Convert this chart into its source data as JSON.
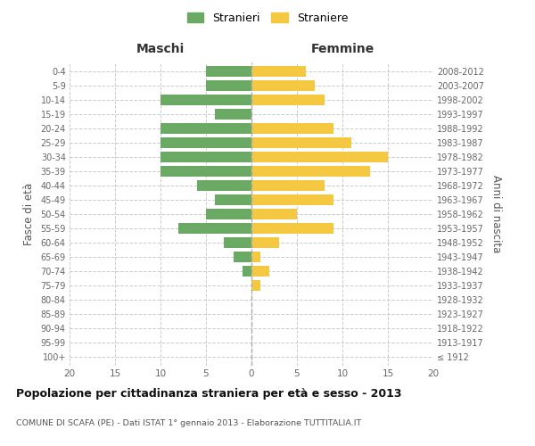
{
  "age_groups": [
    "100+",
    "95-99",
    "90-94",
    "85-89",
    "80-84",
    "75-79",
    "70-74",
    "65-69",
    "60-64",
    "55-59",
    "50-54",
    "45-49",
    "40-44",
    "35-39",
    "30-34",
    "25-29",
    "20-24",
    "15-19",
    "10-14",
    "5-9",
    "0-4"
  ],
  "birth_years": [
    "≤ 1912",
    "1913-1917",
    "1918-1922",
    "1923-1927",
    "1928-1932",
    "1933-1937",
    "1938-1942",
    "1943-1947",
    "1948-1952",
    "1953-1957",
    "1958-1962",
    "1963-1967",
    "1968-1972",
    "1973-1977",
    "1978-1982",
    "1983-1987",
    "1988-1992",
    "1993-1997",
    "1998-2002",
    "2003-2007",
    "2008-2012"
  ],
  "maschi": [
    0,
    0,
    0,
    0,
    0,
    0,
    1,
    2,
    3,
    8,
    5,
    4,
    6,
    10,
    10,
    10,
    10,
    4,
    10,
    5,
    5
  ],
  "femmine": [
    0,
    0,
    0,
    0,
    0,
    1,
    2,
    1,
    3,
    9,
    5,
    9,
    8,
    13,
    15,
    11,
    9,
    0,
    8,
    7,
    6
  ],
  "color_maschi": "#6aaa64",
  "color_femmine": "#f5c842",
  "title": "Popolazione per cittadinanza straniera per età e sesso - 2013",
  "subtitle": "COMUNE DI SCAFA (PE) - Dati ISTAT 1° gennaio 2013 - Elaborazione TUTTITALIA.IT",
  "xlabel_left": "Maschi",
  "xlabel_right": "Femmine",
  "ylabel_left": "Fasce di età",
  "ylabel_right": "Anni di nascita",
  "legend_maschi": "Stranieri",
  "legend_femmine": "Straniere",
  "xlim": 20,
  "background_color": "#ffffff",
  "grid_color": "#cccccc"
}
